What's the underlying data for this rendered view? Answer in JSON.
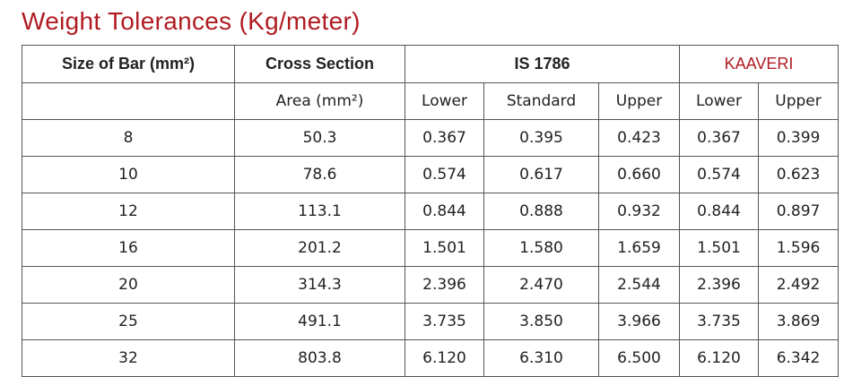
{
  "title": "Weight Tolerances (Kg/meter)",
  "table": {
    "header": [
      "Size of Bar (mm²)",
      "Cross Section",
      "IS 1786",
      "KAAVERI"
    ],
    "subheader": [
      "Area (mm²)",
      "Lower",
      "Standard",
      "Upper",
      "Lower",
      "Upper"
    ],
    "rows": [
      [
        "8",
        "50.3",
        "0.367",
        "0.395",
        "0.423",
        "0.367",
        "0.399"
      ],
      [
        "10",
        "78.6",
        "0.574",
        "0.617",
        "0.660",
        "0.574",
        "0.623"
      ],
      [
        "12",
        "113.1",
        "0.844",
        "0.888",
        "0.932",
        "0.844",
        "0.897"
      ],
      [
        "16",
        "201.2",
        "1.501",
        "1.580",
        "1.659",
        "1.501",
        "1.596"
      ],
      [
        "20",
        "314.3",
        "2.396",
        "2.470",
        "2.544",
        "2.396",
        "2.492"
      ],
      [
        "25",
        "491.1",
        "3.735",
        "3.850",
        "3.966",
        "3.735",
        "3.869"
      ],
      [
        "32",
        "803.8",
        "6.120",
        "6.310",
        "6.500",
        "6.120",
        "6.342"
      ]
    ]
  }
}
